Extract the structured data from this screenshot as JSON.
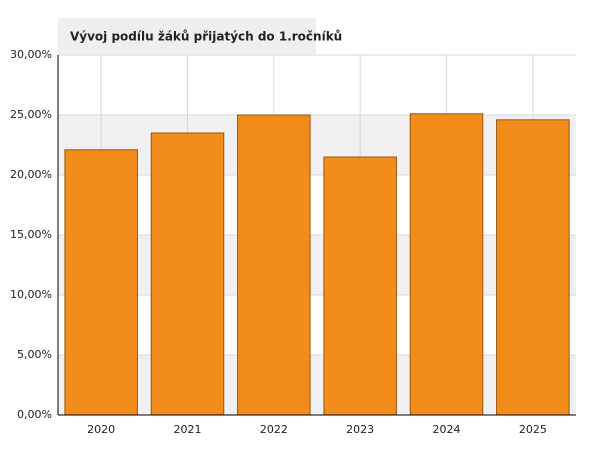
{
  "chart_data": {
    "type": "bar",
    "title": "Vývoj podílu žáků přijatých do 1.ročníků",
    "categories": [
      "2020",
      "2021",
      "2022",
      "2023",
      "2024",
      "2025"
    ],
    "values": [
      22.1,
      23.5,
      25.0,
      21.5,
      25.1,
      24.6
    ],
    "color": "#f28c1a",
    "ylim": [
      0,
      30
    ],
    "yticks": [
      {
        "value": 0,
        "label": "0,00%"
      },
      {
        "value": 5,
        "label": "5,00%"
      },
      {
        "value": 10,
        "label": "10,00%"
      },
      {
        "value": 15,
        "label": "15,00%"
      },
      {
        "value": 20,
        "label": "20,00%"
      },
      {
        "value": 25,
        "label": "25,00%"
      },
      {
        "value": 30,
        "label": "30,00%"
      }
    ],
    "grid": true
  }
}
